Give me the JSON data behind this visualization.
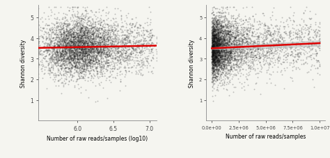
{
  "left_plot": {
    "xlabel": "Number of raw reads/samples (log10)",
    "ylabel": "Shannon diversity",
    "xlim": [
      5.45,
      7.1
    ],
    "ylim": [
      0.0,
      5.6
    ],
    "xticks": [
      6.0,
      6.5,
      7.0
    ],
    "yticks": [
      1,
      2,
      3,
      4,
      5
    ],
    "trend_x": [
      5.45,
      7.1
    ],
    "trend_y_start": 3.52,
    "trend_y_end": 3.63
  },
  "right_plot": {
    "xlabel": "Number of raw reads/samples",
    "ylabel": "Shannon diversity",
    "xlim": [
      -500000.0,
      10500000.0
    ],
    "ylim": [
      0.0,
      5.6
    ],
    "xticks": [
      0,
      2500000,
      5000000,
      7500000,
      10000000
    ],
    "xtick_labels": [
      "0.0e+00",
      "2.5e+06",
      "5.0e+06",
      "7.5e+06",
      "1.0e+07"
    ],
    "yticks": [
      1,
      2,
      3,
      4,
      5
    ],
    "trend_x": [
      0,
      10000000.0
    ],
    "trend_y_start": 3.5,
    "trend_y_end": 3.75
  },
  "point_color": "#111111",
  "point_alpha": 0.25,
  "point_size": 1.8,
  "n_points": 5000,
  "trend_color": "#dd0000",
  "trend_linewidth": 1.8,
  "ci_color": "#bbbbbb",
  "ci_alpha": 0.5,
  "bg_color": "#f5f5f0",
  "seed": 42
}
